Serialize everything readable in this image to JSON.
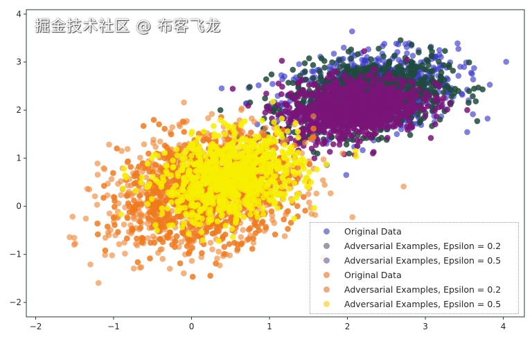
{
  "chart_data": {
    "type": "scatter",
    "xlim": [
      -2.12,
      4.27
    ],
    "ylim": [
      -2.3,
      4.09
    ],
    "xticks": [
      -2,
      -1,
      0,
      1,
      2,
      3,
      4
    ],
    "yticks": [
      -2,
      -1,
      0,
      1,
      2,
      3,
      4
    ],
    "grid": false,
    "legend_placement": "lower-right",
    "series": [
      {
        "name": "Original Data",
        "color": "#3b3bcc",
        "legend_color": "#8a8ad0",
        "distribution": {
          "center": [
            2.3,
            2.35
          ],
          "spread": [
            0.55,
            0.42
          ]
        }
      },
      {
        "name": "Adversarial Examples, Epsilon = 0.2",
        "color": "#1e4a3c",
        "legend_color": "#9a9aa8",
        "distribution": {
          "center": [
            2.25,
            2.3
          ],
          "spread": [
            0.5,
            0.38
          ]
        }
      },
      {
        "name": "Adversarial Examples, Epsilon = 0.5",
        "color": "#7a1478",
        "legend_color": "#a09ac0",
        "distribution": {
          "center": [
            2.05,
            2.05
          ],
          "spread": [
            0.45,
            0.33
          ]
        }
      },
      {
        "name": "Original Data",
        "color": "#f08a3a",
        "legend_color": "#f0a878",
        "distribution": {
          "center": [
            0.15,
            0.3
          ],
          "spread": [
            0.6,
            0.6
          ]
        }
      },
      {
        "name": "Adversarial Examples, Epsilon = 0.2",
        "color": "#ef7a1e",
        "legend_color": "#eeaa80",
        "distribution": {
          "center": [
            0.2,
            0.35
          ],
          "spread": [
            0.55,
            0.55
          ]
        }
      },
      {
        "name": "Adversarial Examples, Epsilon = 0.5",
        "color": "#f7ee00",
        "legend_color": "#f5e070",
        "distribution": {
          "center": [
            0.5,
            0.6
          ],
          "spread": [
            0.45,
            0.45
          ]
        }
      }
    ]
  },
  "watermark": "掘金技术社区 @ 布客飞龙"
}
